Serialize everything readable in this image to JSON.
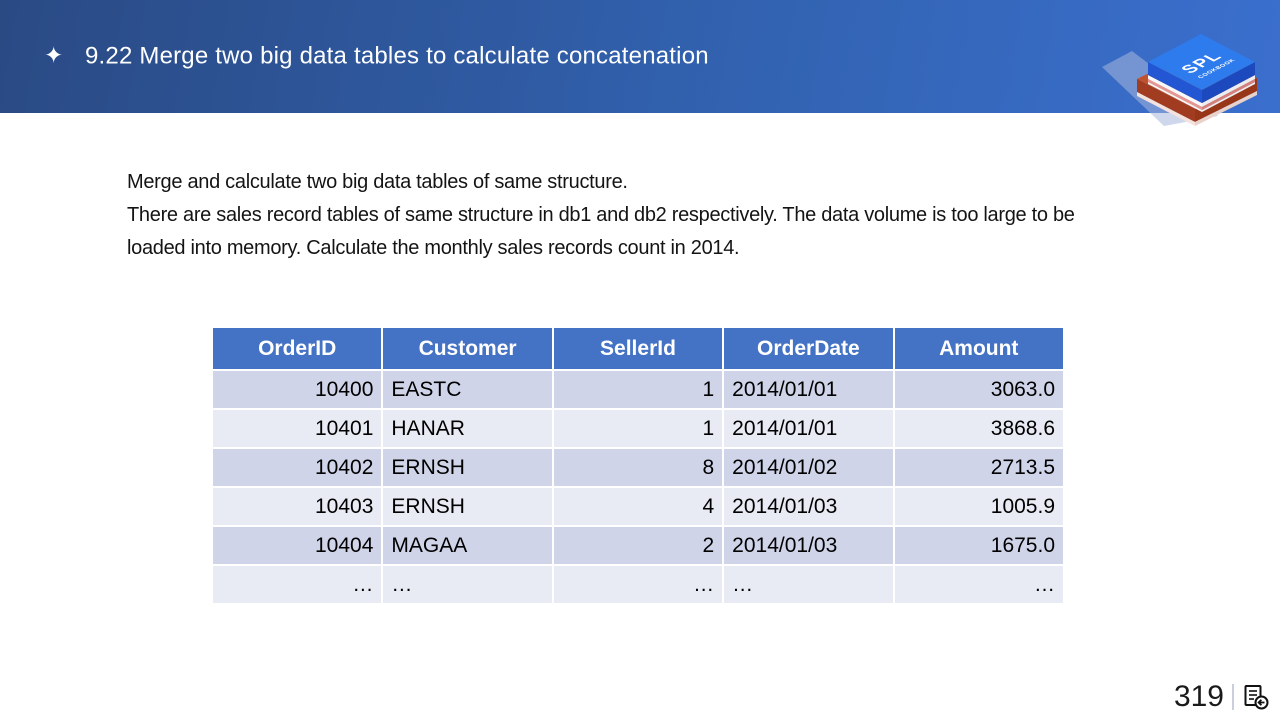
{
  "header": {
    "bullet_glyph": "✦",
    "title": "9.22 Merge two big data tables to calculate concatenation"
  },
  "logo": {
    "title": "SPL",
    "subtitle": "COOKBOOK"
  },
  "body": {
    "lines": [
      "Merge and calculate two big data tables of same structure.",
      "There are sales record tables of same structure in db1 and db2 respectively. The data volume is too large to be",
      "loaded into memory. Calculate the monthly sales records count in 2014."
    ]
  },
  "table": {
    "columns": [
      {
        "label": "OrderID",
        "align": "right"
      },
      {
        "label": "Customer",
        "align": "left"
      },
      {
        "label": "SellerId",
        "align": "right"
      },
      {
        "label": "OrderDate",
        "align": "left"
      },
      {
        "label": "Amount",
        "align": "right"
      }
    ],
    "rows": [
      [
        "10400",
        "EASTC",
        "1",
        "2014/01/01",
        "3063.0"
      ],
      [
        "10401",
        "HANAR",
        "1",
        "2014/01/01",
        "3868.6"
      ],
      [
        "10402",
        "ERNSH",
        "8",
        "2014/01/02",
        "2713.5"
      ],
      [
        "10403",
        "ERNSH",
        "4",
        "2014/01/03",
        "1005.9"
      ],
      [
        "10404",
        "MAGAA",
        "2",
        "2014/01/03",
        "1675.0"
      ],
      [
        "…",
        "…",
        "…",
        "…",
        "…"
      ]
    ]
  },
  "footer": {
    "page_number": "319"
  },
  "colors": {
    "header_gradient_start": "#2a4a84",
    "header_gradient_mid": "#3263b2",
    "header_gradient_end": "#3b6fce",
    "table_header_bg": "#4472c4",
    "row_band_dark": "#cfd4e9",
    "row_band_light": "#e9ebf4",
    "text_dark": "#141414"
  }
}
